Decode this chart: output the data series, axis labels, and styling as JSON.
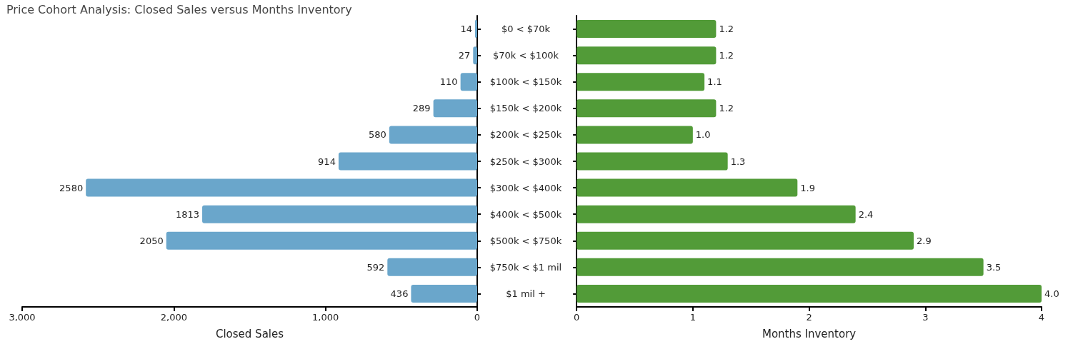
{
  "chart_data": [
    {
      "type": "bar",
      "title": "Price Cohort Analysis: Closed Sales versus Months Inventory",
      "orientation": "horizontal",
      "xlabel": "Closed Sales",
      "categories": [
        "$0 < $70k",
        "$70k < $100k",
        "$100k < $150k",
        "$150k < $200k",
        "$200k < $250k",
        "$250k < $300k",
        "$300k < $400k",
        "$400k < $500k",
        "$500k < $750k",
        "$750k < $1 mil",
        "$1 mil +"
      ],
      "values": [
        14,
        27,
        110,
        289,
        580,
        914,
        2580,
        1813,
        2050,
        592,
        436
      ],
      "color": "#6aa6cb",
      "data_labels": true,
      "xlim": [
        3000,
        0
      ],
      "xticks": [
        {
          "value": 3000,
          "label": "3,000"
        },
        {
          "value": 2000,
          "label": "2,000"
        },
        {
          "value": 1000,
          "label": "1,000"
        },
        0
      ],
      "grid": false
    },
    {
      "type": "bar",
      "orientation": "horizontal",
      "xlabel": "Months Inventory",
      "categories": [
        null,
        null,
        null,
        null,
        null,
        null,
        null,
        null,
        null,
        null,
        null
      ],
      "values": [
        1.2,
        1.2,
        1.1,
        1.2,
        1.0,
        1.3,
        1.9,
        2.4,
        2.9,
        3.5,
        4.0
      ],
      "value_labels": [
        "1.2",
        "1.2",
        "1.1",
        "1.2",
        "1.0",
        "1.3",
        "1.9",
        "2.4",
        "2.9",
        "3.5",
        "4.0"
      ],
      "color": "#529b38",
      "xlim": [
        0,
        4
      ],
      "xticks": [
        0,
        1,
        2,
        3,
        4
      ],
      "tick_labels": "x",
      "grid": false
    }
  ]
}
